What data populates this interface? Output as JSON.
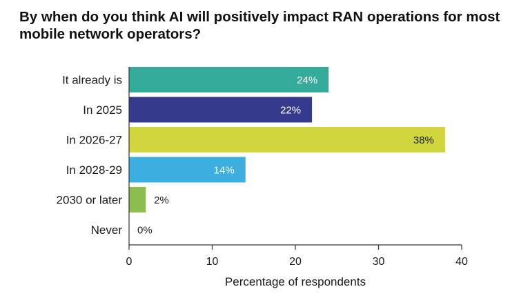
{
  "chart_data": {
    "type": "bar",
    "orientation": "horizontal",
    "title": "By when do you think AI will positively impact RAN operations for most mobile network operators?",
    "categories": [
      "It already is",
      "In 2025",
      "In 2026-27",
      "In 2028-29",
      "2030 or later",
      "Never"
    ],
    "values": [
      24,
      22,
      38,
      14,
      2,
      0
    ],
    "value_labels": [
      "24%",
      "22%",
      "38%",
      "14%",
      "2%",
      "0%"
    ],
    "colors": [
      "#34ab9b",
      "#353a8c",
      "#d1d63f",
      "#3daee0",
      "#8cbe4f",
      "#ffffff"
    ],
    "label_colors": [
      "#ffffff",
      "#ffffff",
      "#1a1a1a",
      "#ffffff",
      "#1a1a1a",
      "#1a1a1a"
    ],
    "xlabel": "Percentage of respondents",
    "ylabel": "",
    "xlim": [
      0,
      40
    ],
    "xticks": [
      0,
      10,
      20,
      30,
      40
    ],
    "xtick_labels": [
      "0",
      "10",
      "20",
      "30",
      "40"
    ],
    "grid": false,
    "legend": "none"
  }
}
